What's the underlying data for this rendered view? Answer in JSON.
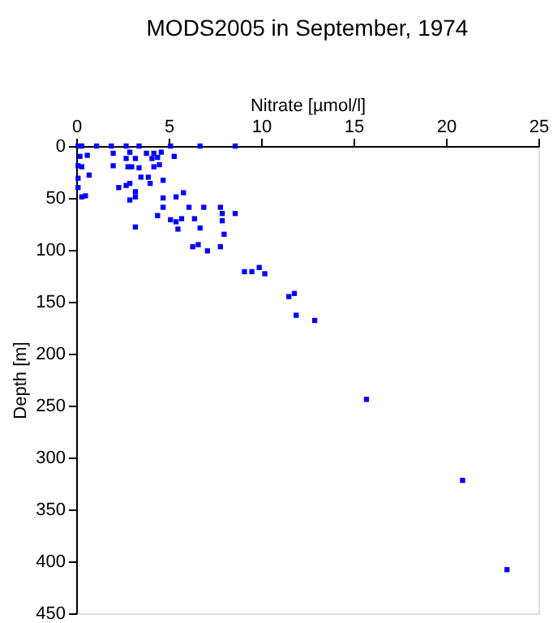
{
  "chart_data": {
    "type": "scatter",
    "title": "MODS2005 in September, 1974",
    "xlabel": "Nitrate [µmol/l]",
    "ylabel": "Depth [m]",
    "xlim": [
      0,
      25
    ],
    "xticks": [
      0,
      5,
      10,
      15,
      20,
      25
    ],
    "ylim": [
      450,
      0
    ],
    "yticks": [
      0,
      50,
      100,
      150,
      200,
      250,
      300,
      350,
      400,
      450
    ],
    "grid": false,
    "marker": "square",
    "series": [
      {
        "color": "#0000ff",
        "x": [
          0.1,
          0.3,
          1.1,
          1.9,
          2.7,
          3.4,
          5.1,
          6.7,
          8.6,
          0.2,
          0.6,
          2.0,
          2.9,
          3.8,
          4.2,
          4.6,
          5.3,
          2.7,
          3.2,
          4.1,
          4.4,
          0.1,
          0.3,
          2.0,
          2.8,
          3.0,
          3.4,
          4.2,
          4.5,
          0.1,
          0.7,
          3.5,
          3.9,
          4.0,
          4.7,
          0.1,
          2.3,
          2.7,
          2.9,
          3.2,
          0.3,
          0.5,
          2.9,
          3.2,
          4.7,
          5.4,
          5.8,
          4.7,
          4.4,
          6.1,
          6.9,
          7.8,
          7.9,
          8.6,
          5.1,
          5.4,
          5.7,
          6.4,
          6.7,
          7.9,
          5.5,
          3.2,
          8.0,
          6.3,
          6.6,
          7.1,
          7.8,
          9.1,
          9.5,
          9.9,
          10.2,
          11.5,
          11.8,
          11.9,
          12.9,
          15.7,
          20.9,
          23.3
        ],
        "values": [
          0,
          0,
          0,
          0,
          0,
          0,
          0,
          0,
          0,
          10,
          9,
          7,
          6,
          7,
          7,
          6,
          10,
          12,
          12,
          12,
          11,
          19,
          20,
          19,
          20,
          20,
          21,
          20,
          18,
          31,
          28,
          30,
          30,
          36,
          33,
          40,
          40,
          38,
          36,
          44,
          49,
          48,
          52,
          49,
          50,
          49,
          45,
          59,
          67,
          59,
          59,
          59,
          65,
          65,
          71,
          73,
          70,
          70,
          79,
          72,
          80,
          78,
          85,
          97,
          95,
          101,
          97,
          121,
          121,
          117,
          123,
          145,
          142,
          163,
          168,
          244,
          322,
          408
        ]
      }
    ]
  }
}
